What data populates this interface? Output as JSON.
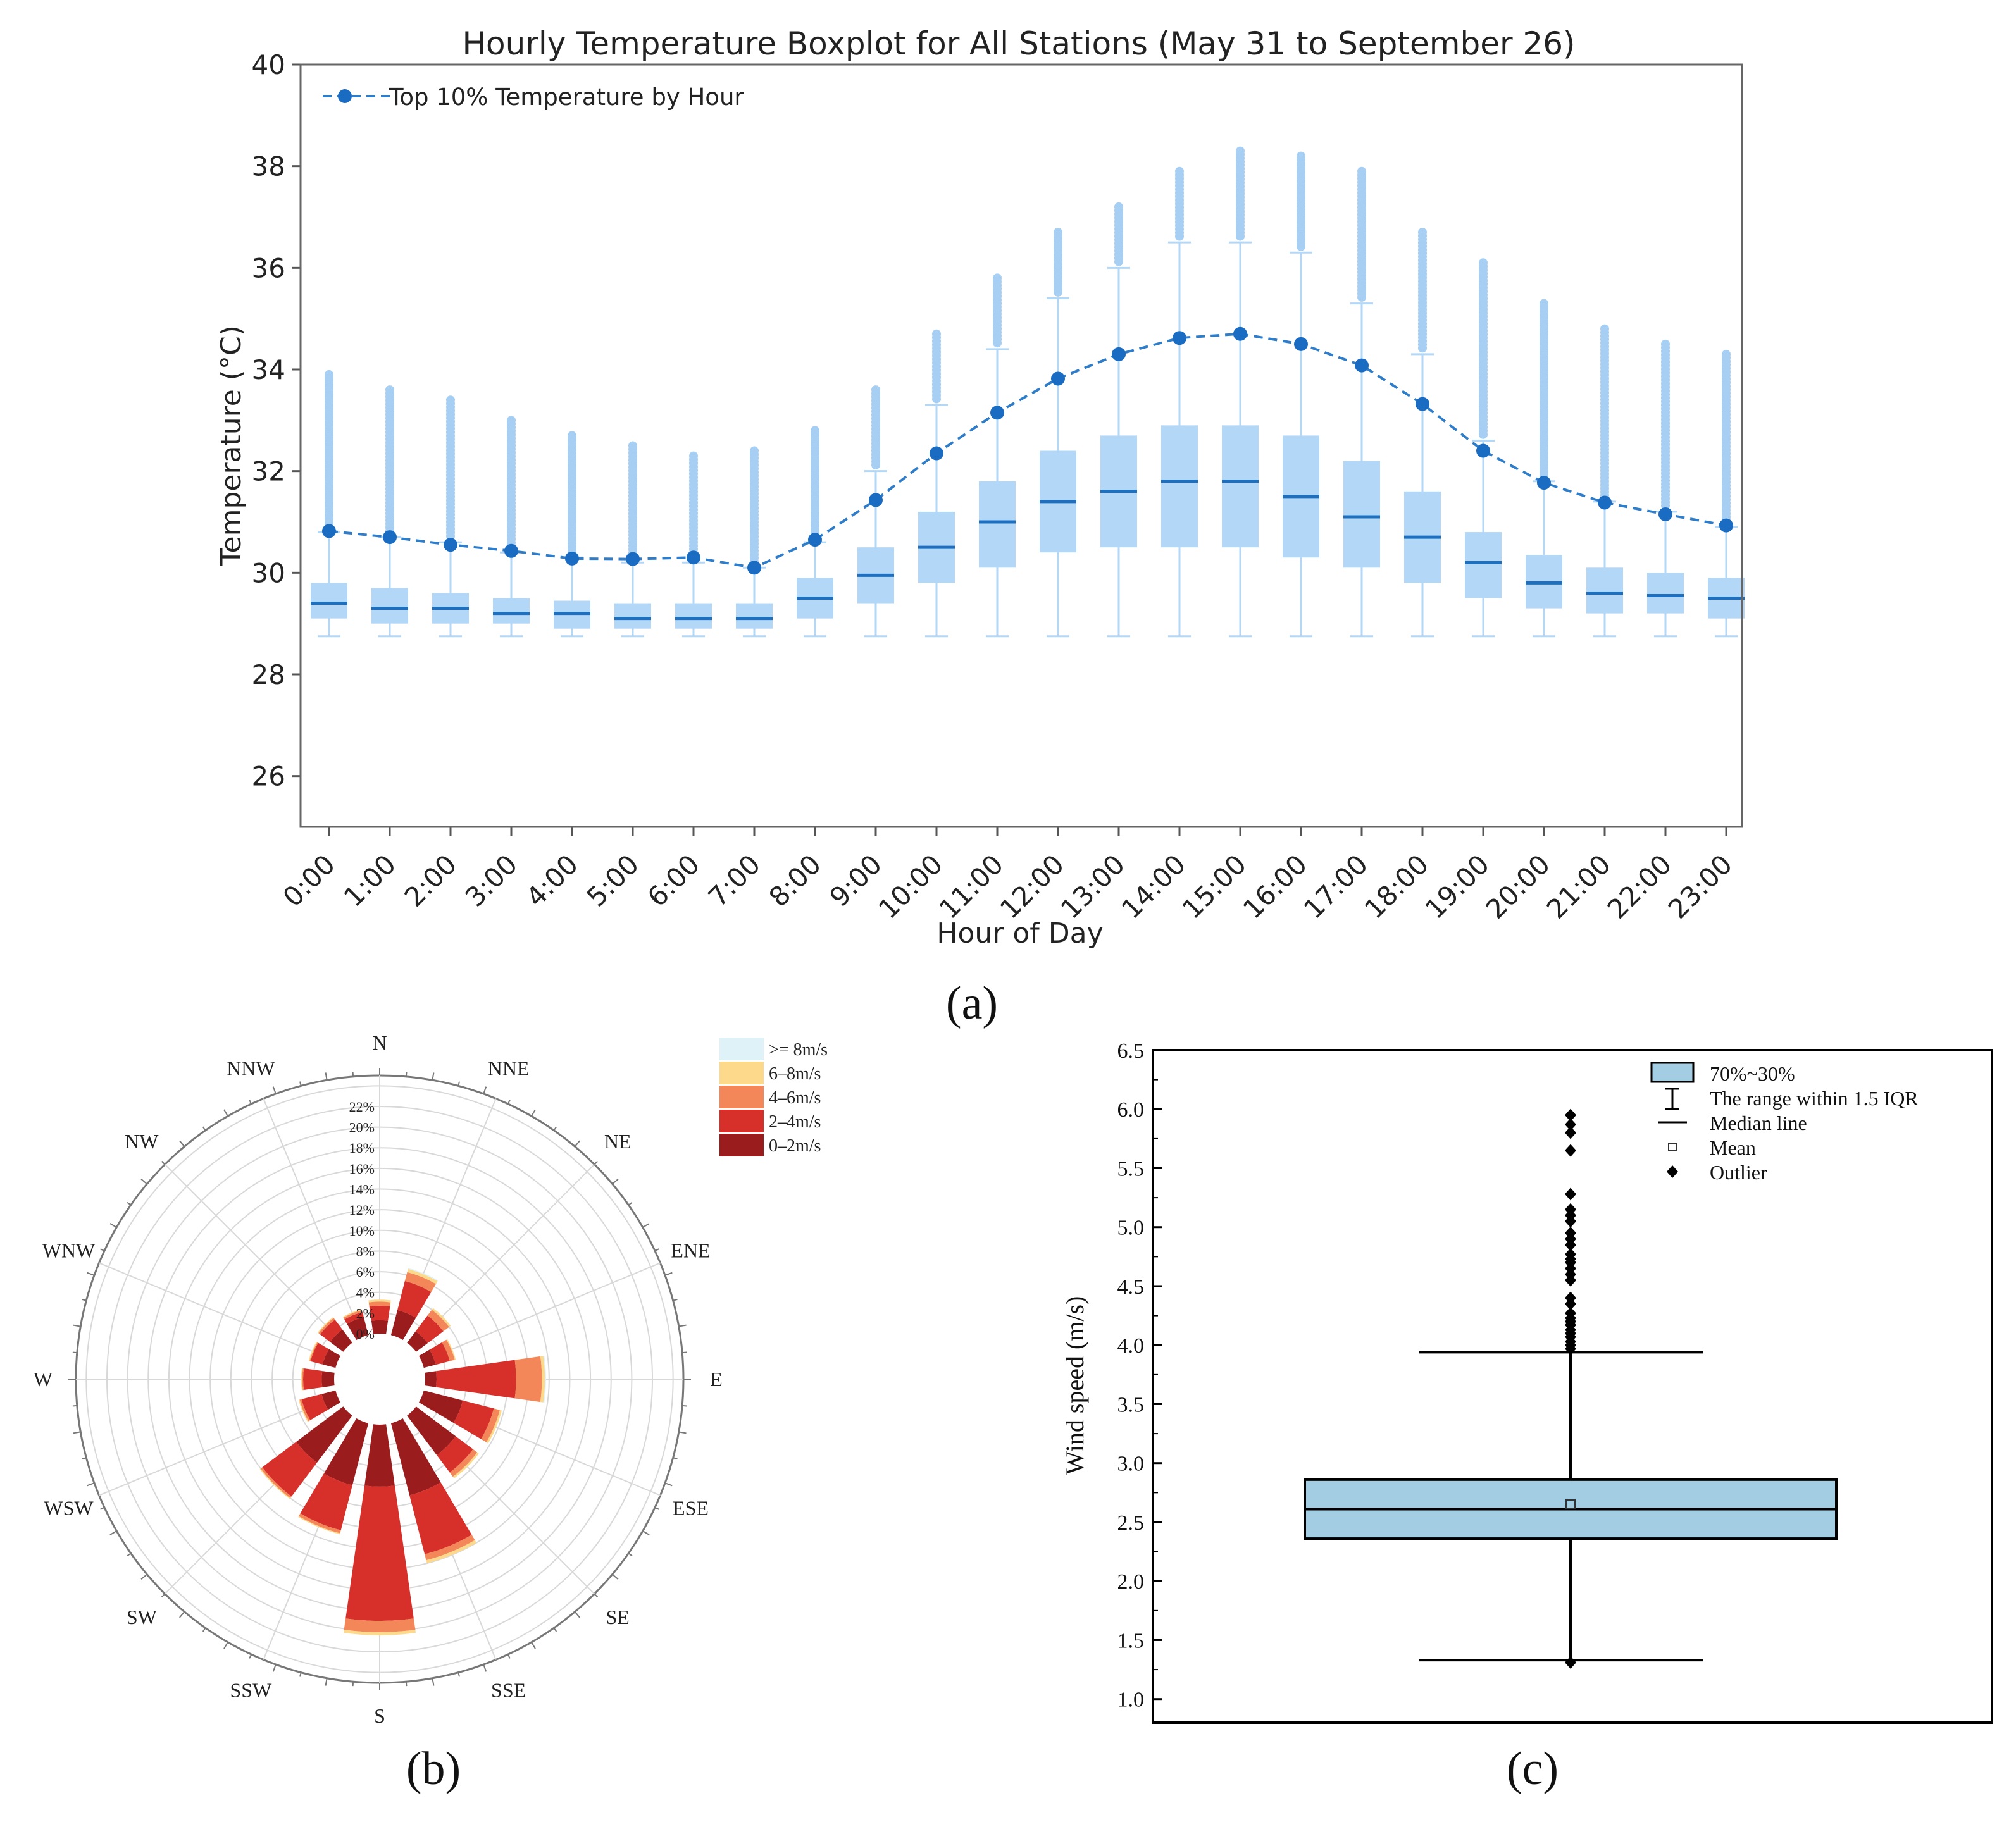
{
  "figure_labels": {
    "a": "(a)",
    "b": "(b)",
    "c": "(c)"
  },
  "chart_data": [
    {
      "type": "box",
      "id": "a",
      "title": "Hourly Temperature Boxplot for All Stations (May 31 to September 26)",
      "xlabel": "Hour of Day",
      "ylabel": "Temperature (°C)",
      "ylim": [
        25,
        40
      ],
      "yticks": [
        26,
        28,
        30,
        32,
        34,
        36,
        38,
        40
      ],
      "categories": [
        "0:00",
        "1:00",
        "2:00",
        "3:00",
        "4:00",
        "5:00",
        "6:00",
        "7:00",
        "8:00",
        "9:00",
        "10:00",
        "11:00",
        "12:00",
        "13:00",
        "14:00",
        "15:00",
        "16:00",
        "17:00",
        "18:00",
        "19:00",
        "20:00",
        "21:00",
        "22:00",
        "23:00"
      ],
      "q1": [
        29.1,
        29.0,
        29.0,
        29.0,
        28.9,
        28.9,
        28.9,
        28.9,
        29.1,
        29.4,
        29.8,
        30.1,
        30.4,
        30.5,
        30.5,
        30.5,
        30.3,
        30.1,
        29.8,
        29.5,
        29.3,
        29.2,
        29.2,
        29.1
      ],
      "median": [
        29.4,
        29.3,
        29.3,
        29.2,
        29.2,
        29.1,
        29.1,
        29.1,
        29.5,
        29.95,
        30.5,
        31.0,
        31.4,
        31.6,
        31.8,
        31.8,
        31.5,
        31.1,
        30.7,
        30.2,
        29.8,
        29.6,
        29.55,
        29.5
      ],
      "q3": [
        29.8,
        29.7,
        29.6,
        29.5,
        29.45,
        29.4,
        29.4,
        29.4,
        29.9,
        30.5,
        31.2,
        31.8,
        32.4,
        32.7,
        32.9,
        32.9,
        32.7,
        32.2,
        31.6,
        30.8,
        30.35,
        30.1,
        30.0,
        29.9
      ],
      "whisker_low": [
        28.75,
        28.75,
        28.75,
        28.75,
        28.75,
        28.75,
        28.75,
        28.75,
        28.75,
        28.75,
        28.75,
        28.75,
        28.75,
        28.75,
        28.75,
        28.75,
        28.75,
        28.75,
        28.75,
        28.75,
        28.75,
        28.75,
        28.75,
        28.75
      ],
      "whisker_high": [
        30.8,
        30.7,
        30.6,
        30.4,
        30.3,
        30.2,
        30.2,
        30.1,
        30.6,
        32.0,
        33.3,
        34.4,
        35.4,
        36.0,
        36.5,
        36.5,
        36.3,
        35.3,
        34.3,
        32.6,
        31.8,
        31.4,
        31.2,
        30.9
      ],
      "max_outlier": [
        33.9,
        33.6,
        33.4,
        33.0,
        32.7,
        32.5,
        32.3,
        32.4,
        32.8,
        33.6,
        34.7,
        35.8,
        36.7,
        37.2,
        37.9,
        38.3,
        38.2,
        37.9,
        36.7,
        36.1,
        35.3,
        34.8,
        34.5,
        34.3
      ],
      "series": [
        {
          "name": "Top 10% Temperature by Hour",
          "values": [
            30.82,
            30.7,
            30.55,
            30.43,
            30.28,
            30.27,
            30.3,
            30.1,
            30.65,
            31.43,
            32.35,
            33.15,
            33.82,
            34.3,
            34.62,
            34.7,
            34.5,
            34.08,
            33.32,
            32.4,
            31.77,
            31.38,
            31.15,
            30.93
          ]
        }
      ],
      "colors": {
        "box": "#b3d7f7",
        "median": "#1f6fbf",
        "line": "#2f7dc8",
        "marker": "#1a6bc2",
        "outlier": "#a6cff3"
      }
    },
    {
      "type": "windrose",
      "id": "b",
      "directions": [
        "N",
        "NNE",
        "NE",
        "ENE",
        "E",
        "ESE",
        "SE",
        "SSE",
        "S",
        "SSW",
        "SW",
        "WSW",
        "W",
        "WNW",
        "NW",
        "NNW"
      ],
      "radial_ticks": [
        "0%",
        "2%",
        "4%",
        "6%",
        "8%",
        "10%",
        "12%",
        "14%",
        "16%",
        "18%",
        "20%",
        "22%"
      ],
      "rmax": 25,
      "bins": [
        {
          "name": "0–2m/s",
          "color": "#9b1c1c"
        },
        {
          "name": "2–4m/s",
          "color": "#d7302a"
        },
        {
          "name": "4–6m/s",
          "color": "#f4875a"
        },
        {
          "name": "6–8m/s",
          "color": "#fdd98c"
        },
        {
          "name": ">= 8m/s",
          "color": "#dff2f7"
        }
      ],
      "legend_order": [
        ">= 8m/s",
        "6–8m/s",
        "4–6m/s",
        "2–4m/s",
        "0–2m/s"
      ],
      "values": [
        [
          1.3,
          2.7,
          3.1,
          3.3,
          0
        ],
        [
          2.5,
          5.4,
          6.3,
          6.6,
          6.7
        ],
        [
          1.4,
          3.3,
          4.0,
          4.2,
          0
        ],
        [
          1.2,
          2.6,
          3.1,
          3.2,
          0
        ],
        [
          1.1,
          8.8,
          11.3,
          11.6,
          11.7
        ],
        [
          3.9,
          7.0,
          7.6,
          7.8,
          0
        ],
        [
          4.8,
          6.9,
          7.4,
          7.6,
          0
        ],
        [
          7.2,
          13.1,
          13.7,
          14.0,
          0
        ],
        [
          6.0,
          19.0,
          20.1,
          20.4,
          0
        ],
        [
          6.2,
          10.7,
          11.0,
          11.1,
          0
        ],
        [
          5.7,
          9.8,
          10.0,
          10.1,
          0
        ],
        [
          1.4,
          3.4,
          3.6,
          3.7,
          0
        ],
        [
          1.2,
          3.0,
          3.1,
          3.2,
          0
        ],
        [
          1.3,
          2.5,
          2.6,
          2.7,
          0
        ],
        [
          1.6,
          2.8,
          3.0,
          3.1,
          0
        ],
        [
          1.8,
          2.3,
          2.5,
          2.6,
          0
        ]
      ]
    },
    {
      "type": "box",
      "id": "c",
      "ylabel": "Wind speed (m/s)",
      "ylim": [
        0.8,
        6.5
      ],
      "yticks": [
        "1.0",
        "1.5",
        "2.0",
        "2.5",
        "3.0",
        "3.5",
        "4.0",
        "4.5",
        "5.0",
        "5.5",
        "6.0",
        "6.5"
      ],
      "q1": 2.36,
      "median": 2.61,
      "q3": 2.86,
      "mean": 2.65,
      "whisker_low": 1.33,
      "whisker_high": 3.94,
      "outliers": [
        1.31,
        3.97,
        4.0,
        4.03,
        4.07,
        4.1,
        4.13,
        4.17,
        4.2,
        4.23,
        4.27,
        4.35,
        4.4,
        4.55,
        4.6,
        4.65,
        4.7,
        4.73,
        4.77,
        4.85,
        4.9,
        4.95,
        5.05,
        5.1,
        5.15,
        5.28,
        5.65,
        5.8,
        5.87,
        5.95
      ],
      "legend": [
        "70%~30%",
        "The range within 1.5 IQR",
        "Median line",
        "Mean",
        "Outlier"
      ],
      "colors": {
        "box": "#a3cde3"
      }
    }
  ]
}
